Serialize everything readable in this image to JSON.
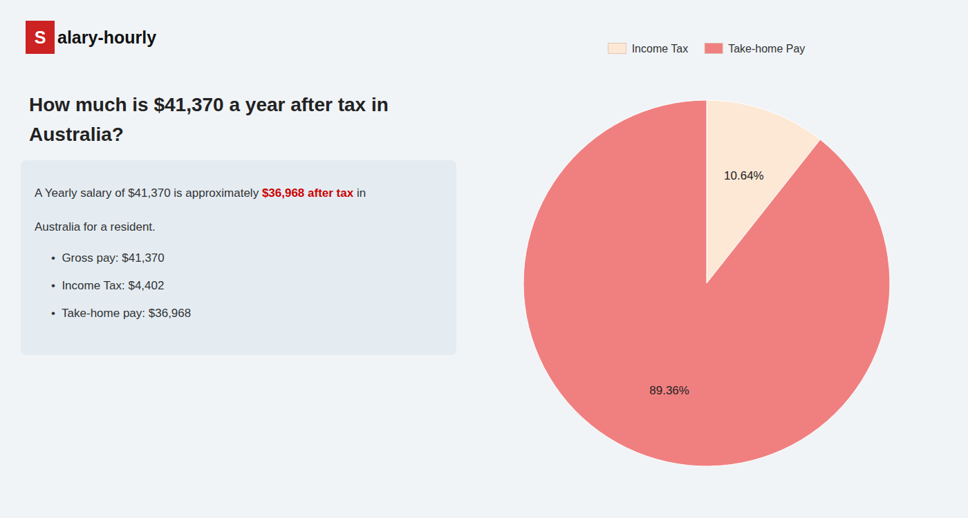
{
  "chart_data": {
    "type": "pie",
    "title": "How much is $41,370 a year after tax in Australia?",
    "categories": [
      "Income Tax",
      "Take-home Pay"
    ],
    "values": [
      10.64,
      89.36
    ],
    "value_labels": [
      "10.64%",
      "89.36%"
    ],
    "colors": [
      "#fce8d5",
      "#f08080"
    ],
    "data_labels": true,
    "legend": "top",
    "annotations": [
      {
        "text": "S"
      },
      {
        "text": "alary-hourly"
      },
      {
        "text": "A Yearly salary of $41,370 is approximately "
      },
      {
        "text": "$36,968 after tax",
        "color": "#cc0000"
      },
      {
        "text": " in"
      },
      {
        "text": "Australia for a resident."
      },
      {
        "text": "•  Gross pay: $41,370"
      },
      {
        "text": "•  Income Tax: $4,402"
      },
      {
        "text": "•  Take-home pay: $36,968"
      }
    ]
  }
}
